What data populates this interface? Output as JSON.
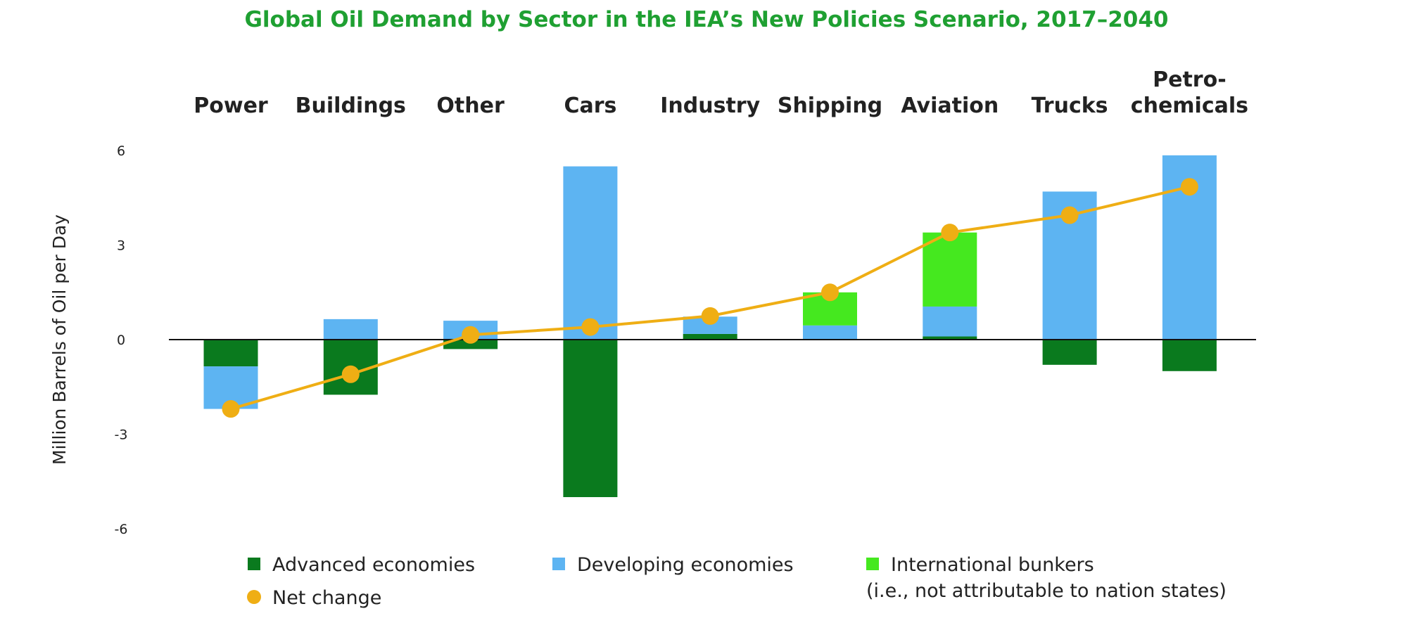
{
  "chart_data": {
    "type": "bar",
    "title": "Global Oil Demand by Sector in the IEA’s New Policies Scenario, 2017–2040",
    "xlabel": "",
    "ylabel": "Million Barrels of Oil per Day",
    "ylim": [
      -6,
      6
    ],
    "yticks": [
      6,
      3,
      0,
      -3,
      -6
    ],
    "ytick_labels": [
      "6",
      "3",
      "0",
      "-3",
      "-6"
    ],
    "categories": [
      "Power",
      "Buildings",
      "Other",
      "Cars",
      "Industry",
      "Shipping",
      "Aviation",
      "Trucks",
      "Petro-\nchemicals"
    ],
    "series": [
      {
        "name": "Advanced economies",
        "kind": "bar",
        "color": "#0a7a1e",
        "values": [
          -0.85,
          -1.75,
          -0.3,
          -5.0,
          0.18,
          0,
          0.1,
          -0.8,
          -1.0
        ]
      },
      {
        "name": "Developing economies",
        "kind": "bar",
        "color": "#5db4f2",
        "values": [
          -1.35,
          0.65,
          0.6,
          5.5,
          0.55,
          0.45,
          0.95,
          4.7,
          5.85
        ]
      },
      {
        "name": "International bunkers",
        "kind": "bar",
        "color": "#45e81f",
        "values": [
          0,
          0,
          0,
          0,
          0,
          1.05,
          2.35,
          0,
          0
        ]
      },
      {
        "name": "Net change",
        "kind": "line",
        "color": "#efae14",
        "values": [
          -2.2,
          -1.1,
          0.15,
          0.4,
          0.75,
          1.5,
          3.4,
          3.95,
          4.85
        ]
      }
    ],
    "legend": {
      "position": "bottom",
      "items": [
        {
          "label": "Advanced economies",
          "marker": "square",
          "color": "#0a7a1e"
        },
        {
          "label": "Developing economies",
          "marker": "square",
          "color": "#5db4f2"
        },
        {
          "label": "International bunkers",
          "sublabel": "(i.e., not attributable to nation states)",
          "marker": "square",
          "color": "#45e81f"
        },
        {
          "label": "Net change",
          "marker": "circle",
          "color": "#efae14"
        }
      ]
    },
    "colors": {
      "title": "#1fa032",
      "axis": "#222222"
    }
  }
}
